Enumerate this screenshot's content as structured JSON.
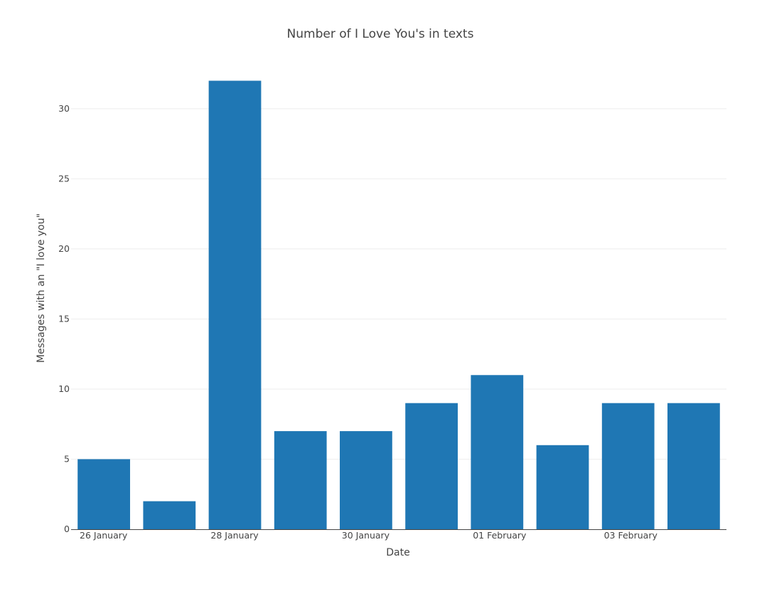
{
  "chart_data": {
    "type": "bar",
    "title": "Number of I Love You's in texts",
    "xlabel": "Date",
    "ylabel": "Messages with an \"I love you\"",
    "categories": [
      "2024-01-26",
      "2024-01-27",
      "2024-01-28",
      "2024-01-29",
      "2024-01-30",
      "2024-01-31",
      "2024-02-01",
      "2024-02-02",
      "2024-02-03",
      "2024-02-04"
    ],
    "values": [
      5,
      2,
      32,
      7,
      7,
      9,
      11,
      6,
      9,
      9
    ],
    "x_tick_labels": [
      {
        "category": "2024-01-26",
        "label": "26 January"
      },
      {
        "category": "2024-01-28",
        "label": "28 January"
      },
      {
        "category": "2024-01-30",
        "label": "30 January"
      },
      {
        "category": "2024-02-01",
        "label": "01 February"
      },
      {
        "category": "2024-02-03",
        "label": "03 February"
      }
    ],
    "y_ticks": [
      0,
      5,
      10,
      15,
      20,
      25,
      30
    ],
    "ylim": [
      0,
      33.7
    ],
    "grid": true,
    "colors": {
      "bar": "#1f77b4",
      "grid": "#eeeeee",
      "axis_line": "#444444",
      "text": "#444444"
    }
  }
}
